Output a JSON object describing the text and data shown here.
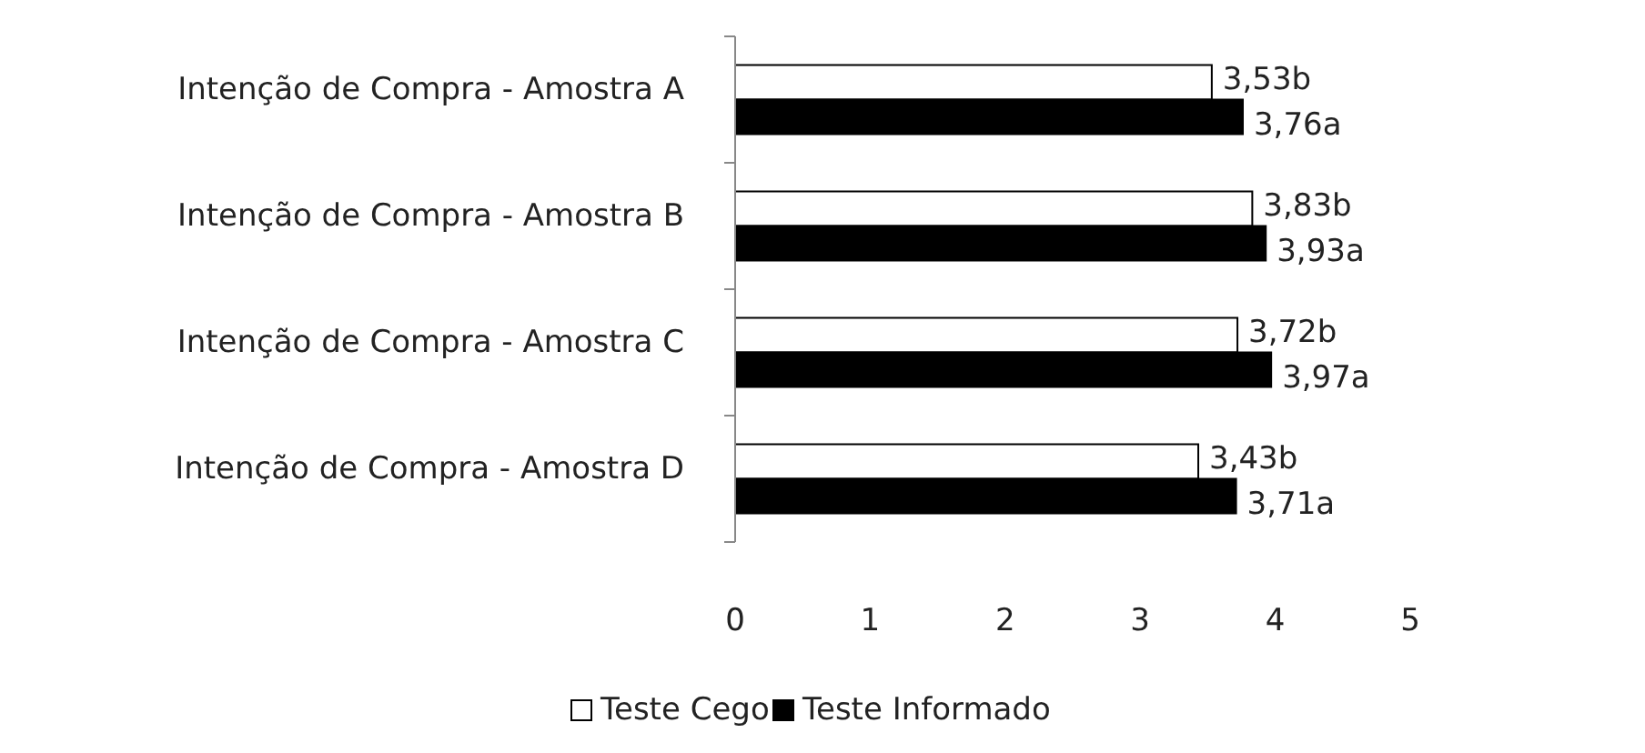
{
  "chart_data": {
    "type": "bar",
    "orientation": "horizontal",
    "categories": [
      "Intenção de Compra - Amostra A",
      "Intenção de Compra - Amostra B",
      "Intenção de Compra - Amostra C",
      "Intenção de Compra - Amostra D"
    ],
    "series": [
      {
        "name": "Teste Cego",
        "color": "#ffffff",
        "values": [
          3.53,
          3.83,
          3.72,
          3.43
        ],
        "value_labels": [
          "3,53b",
          "3,83b",
          "3,72b",
          "3,43b"
        ]
      },
      {
        "name": "Teste Informado",
        "color": "#000000",
        "values": [
          3.76,
          3.93,
          3.97,
          3.71
        ],
        "value_labels": [
          "3,76a",
          "3,93a",
          "3,97a",
          "3,71a"
        ]
      }
    ],
    "xlim": [
      0,
      5
    ],
    "xticks": [
      0,
      1,
      2,
      3,
      4,
      5
    ],
    "grid": false,
    "legend": "bottom"
  }
}
